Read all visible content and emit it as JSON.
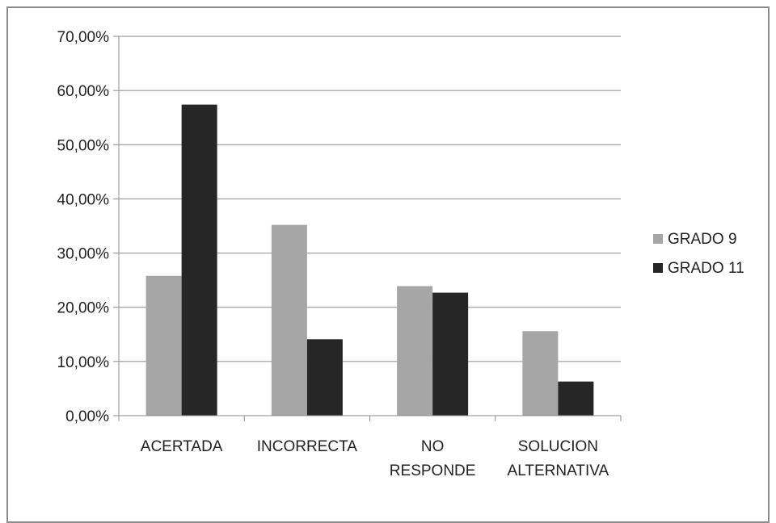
{
  "chart_data": {
    "type": "bar",
    "title": "",
    "xlabel": "",
    "ylabel": "",
    "categories": [
      [
        "ACERTADA"
      ],
      [
        "INCORRECTA"
      ],
      [
        "NO",
        "RESPONDE"
      ],
      [
        "SOLUCION",
        "ALTERNATIVA"
      ]
    ],
    "series": [
      {
        "name": "GRADO 9",
        "color": "#a6a6a6",
        "values": [
          25.8,
          35.2,
          23.9,
          15.6
        ]
      },
      {
        "name": "GRADO 11",
        "color": "#262626",
        "values": [
          57.4,
          14.1,
          22.7,
          6.3
        ]
      }
    ],
    "ylim": [
      0,
      70
    ],
    "yticks": [
      "0,00%",
      "10,00%",
      "20,00%",
      "30,00%",
      "40,00%",
      "50,00%",
      "60,00%",
      "70,00%"
    ],
    "grid": true,
    "legend_position": "right"
  }
}
